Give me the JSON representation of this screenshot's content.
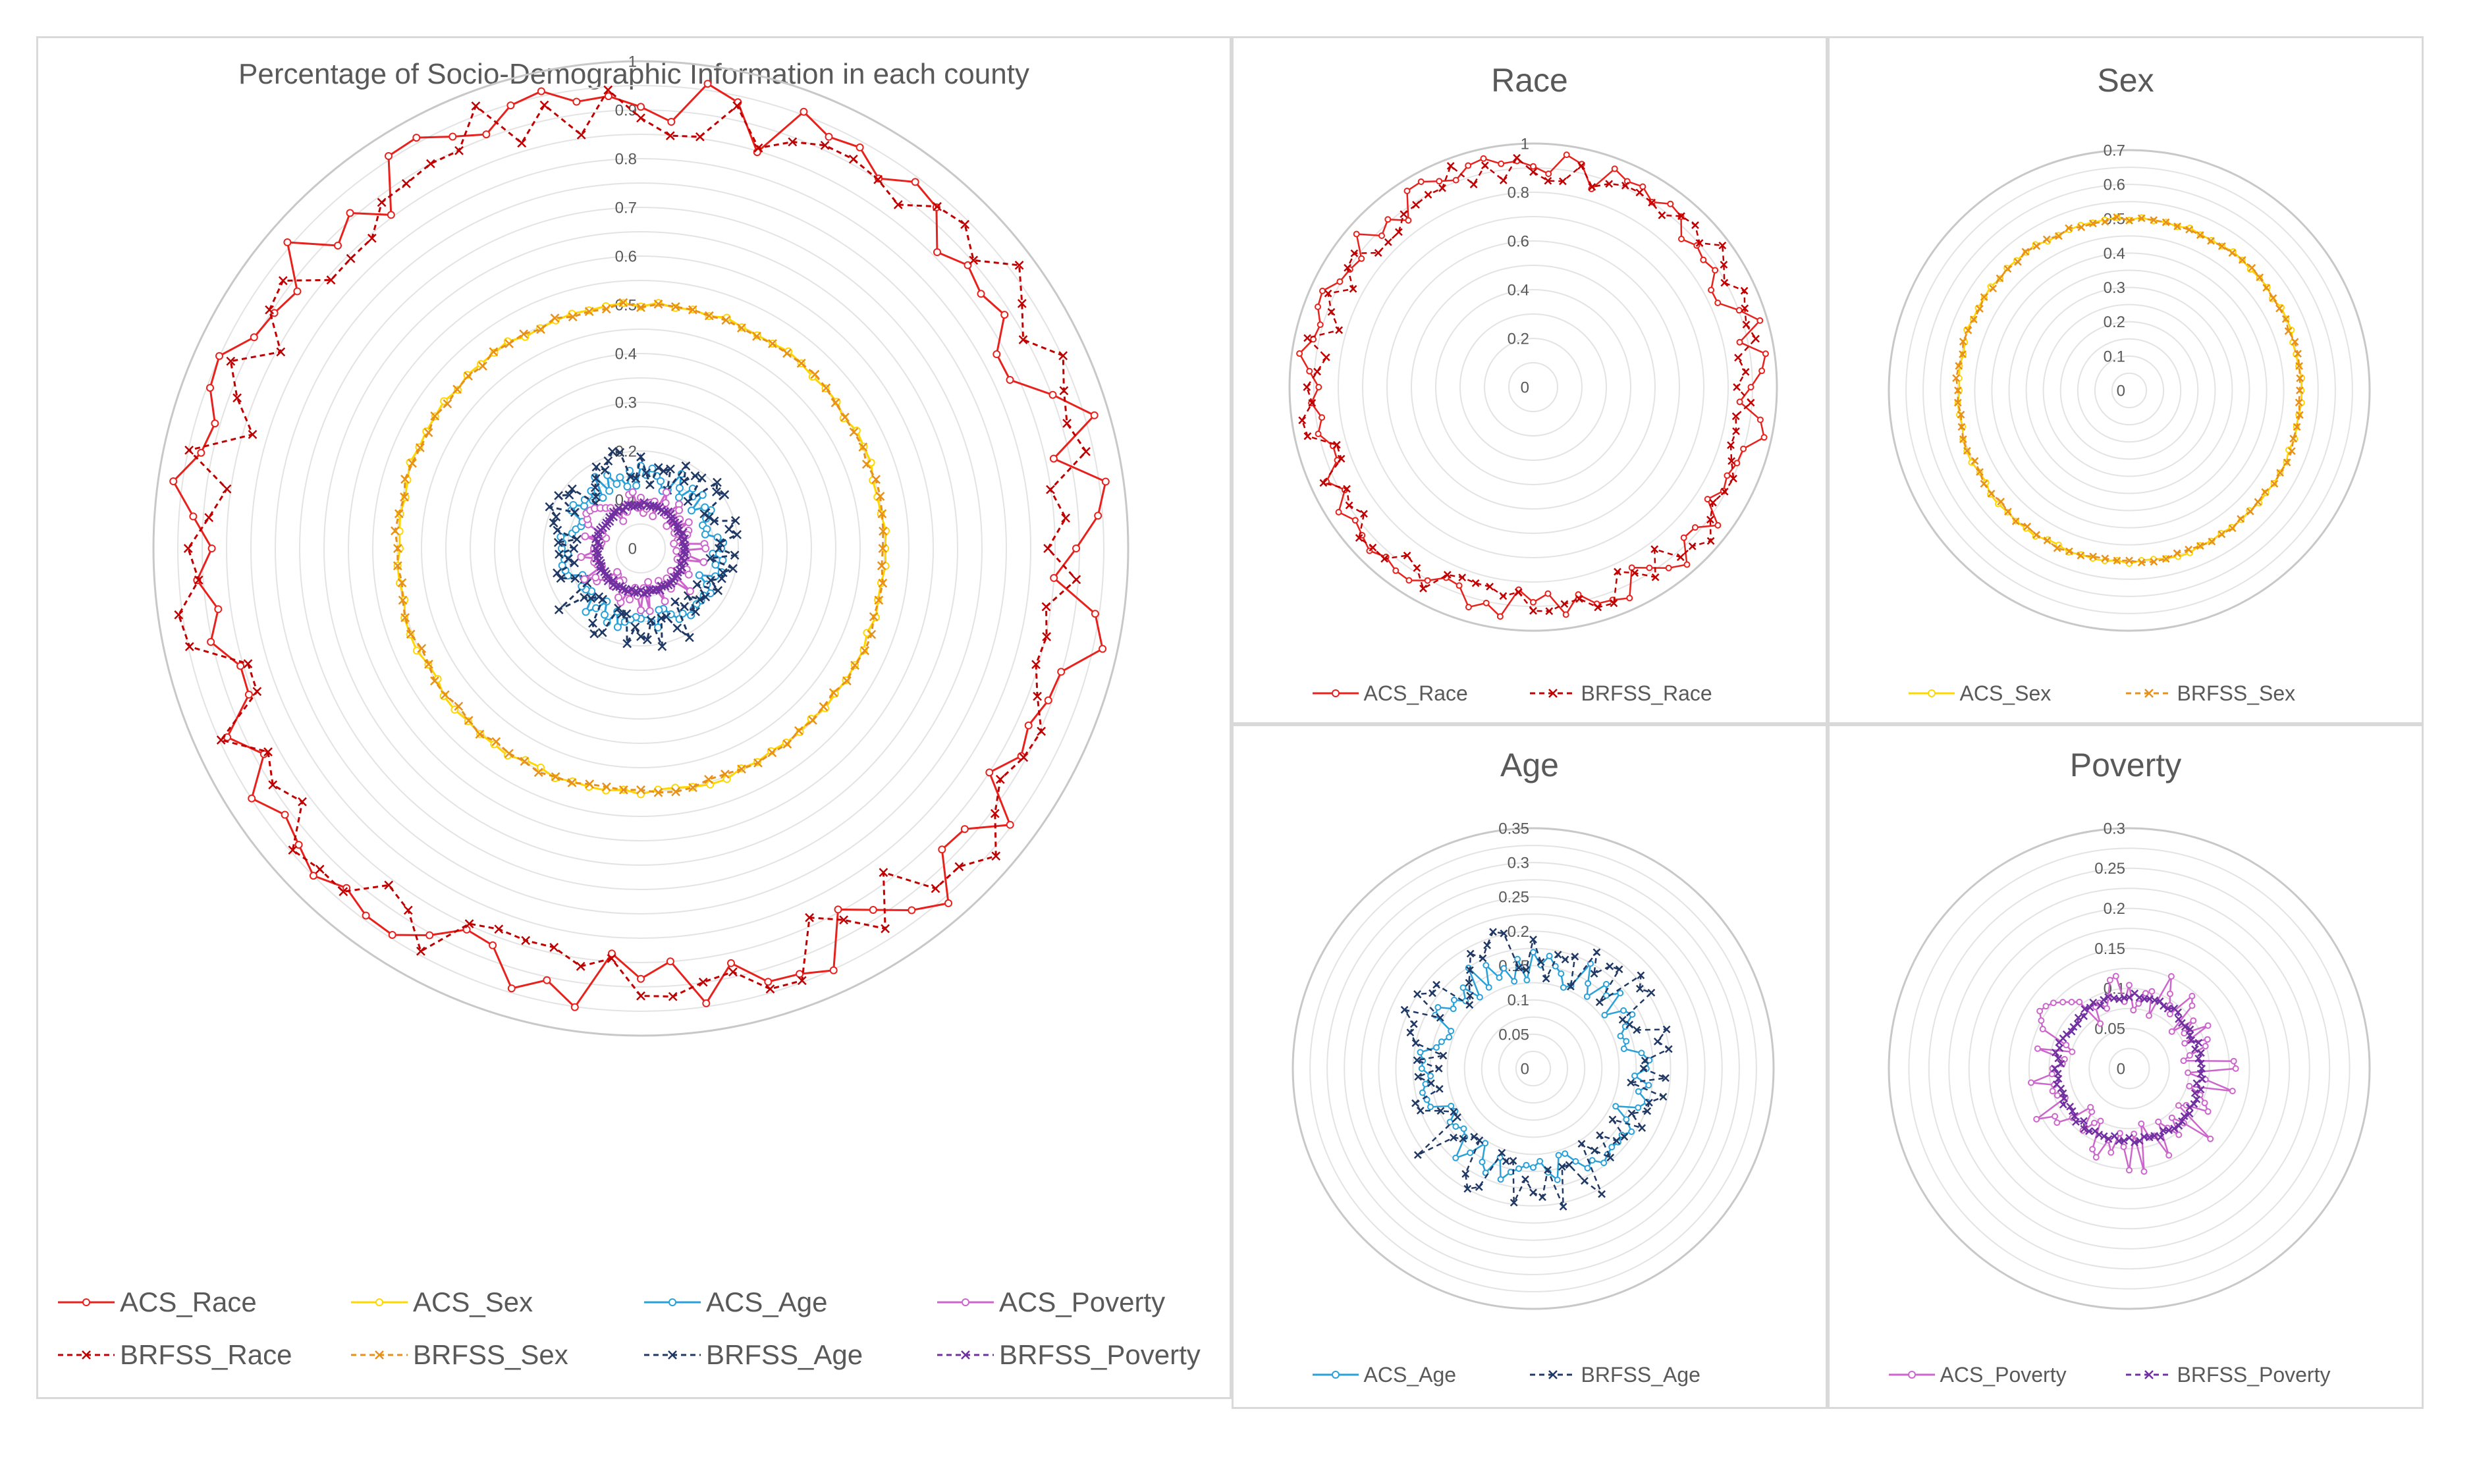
{
  "chart_data": [
    {
      "id": "main",
      "type": "radar",
      "title": "Percentage of Socio-Demographic Information in each county",
      "rlim": [
        0,
        1
      ],
      "rticks": [
        "0",
        "0.1",
        "0.2",
        "0.3",
        "0.4",
        "0.5",
        "0.6",
        "0.7",
        "0.8",
        "0.9",
        "1"
      ],
      "gridlines": 20,
      "n_categories": 88,
      "series": [
        {
          "name": "ACS_Race",
          "color": "#e8211c",
          "dash": false,
          "marker": "circle",
          "mean": 0.9,
          "amp": 0.07,
          "seed": 1
        },
        {
          "name": "BRFSS_Race",
          "color": "#c00000",
          "dash": true,
          "marker": "x",
          "mean": 0.9,
          "amp": 0.07,
          "seed": 2
        },
        {
          "name": "ACS_Sex",
          "color": "#ffd700",
          "dash": false,
          "marker": "circle",
          "mean": 0.5,
          "amp": 0.006,
          "seed": 3
        },
        {
          "name": "BRFSS_Sex",
          "color": "#e7901a",
          "dash": true,
          "marker": "x",
          "mean": 0.5,
          "amp": 0.006,
          "seed": 4
        },
        {
          "name": "ACS_Age",
          "color": "#2aa0d8",
          "dash": false,
          "marker": "circle",
          "mean": 0.15,
          "amp": 0.025,
          "seed": 5
        },
        {
          "name": "BRFSS_Age",
          "color": "#203864",
          "dash": true,
          "marker": "x",
          "mean": 0.17,
          "amp": 0.04,
          "seed": 6
        },
        {
          "name": "ACS_Poverty",
          "color": "#cc66cc",
          "dash": false,
          "marker": "circle",
          "mean": 0.1,
          "amp": 0.035,
          "seed": 7
        },
        {
          "name": "BRFSS_Poverty",
          "color": "#7030a0",
          "dash": true,
          "marker": "x",
          "mean": 0.09,
          "amp": 0.005,
          "seed": 8
        }
      ]
    },
    {
      "id": "race",
      "type": "radar",
      "title": "Race",
      "rlim": [
        0,
        1
      ],
      "rticks": [
        "0",
        "0.2",
        "0.4",
        "0.6",
        "0.8",
        "1"
      ],
      "gridlines": 10,
      "n_categories": 88,
      "series": [
        {
          "name": "ACS_Race",
          "color": "#e8211c",
          "dash": false,
          "marker": "circle",
          "mean": 0.9,
          "amp": 0.07,
          "seed": 1
        },
        {
          "name": "BRFSS_Race",
          "color": "#c00000",
          "dash": true,
          "marker": "x",
          "mean": 0.9,
          "amp": 0.07,
          "seed": 2
        }
      ]
    },
    {
      "id": "sex",
      "type": "radar",
      "title": "Sex",
      "rlim": [
        0,
        0.7
      ],
      "rticks": [
        "0",
        "0.1",
        "0.2",
        "0.3",
        "0.4",
        "0.5",
        "0.6",
        "0.7"
      ],
      "gridlines": 14,
      "n_categories": 88,
      "series": [
        {
          "name": "ACS_Sex",
          "color": "#ffd700",
          "dash": false,
          "marker": "circle",
          "mean": 0.5,
          "amp": 0.006,
          "seed": 3
        },
        {
          "name": "BRFSS_Sex",
          "color": "#e7901a",
          "dash": true,
          "marker": "x",
          "mean": 0.5,
          "amp": 0.006,
          "seed": 4
        }
      ]
    },
    {
      "id": "age",
      "type": "radar",
      "title": "Age",
      "rlim": [
        0,
        0.35
      ],
      "rticks": [
        "0",
        "0.05",
        "0.1",
        "0.15",
        "0.2",
        "0.25",
        "0.3",
        "0.35"
      ],
      "gridlines": 14,
      "n_categories": 88,
      "series": [
        {
          "name": "ACS_Age",
          "color": "#2aa0d8",
          "dash": false,
          "marker": "circle",
          "mean": 0.15,
          "amp": 0.025,
          "seed": 5
        },
        {
          "name": "BRFSS_Age",
          "color": "#203864",
          "dash": true,
          "marker": "x",
          "mean": 0.17,
          "amp": 0.04,
          "seed": 6
        }
      ]
    },
    {
      "id": "poverty",
      "type": "radar",
      "title": "Poverty",
      "rlim": [
        0,
        0.3
      ],
      "rticks": [
        "0",
        "0.05",
        "0.1",
        "0.15",
        "0.2",
        "0.25",
        "0.3"
      ],
      "gridlines": 12,
      "n_categories": 88,
      "series": [
        {
          "name": "ACS_Poverty",
          "color": "#cc66cc",
          "dash": false,
          "marker": "circle",
          "mean": 0.1,
          "amp": 0.035,
          "seed": 7
        },
        {
          "name": "BRFSS_Poverty",
          "color": "#7030a0",
          "dash": true,
          "marker": "x",
          "mean": 0.09,
          "amp": 0.005,
          "seed": 8
        }
      ]
    }
  ]
}
